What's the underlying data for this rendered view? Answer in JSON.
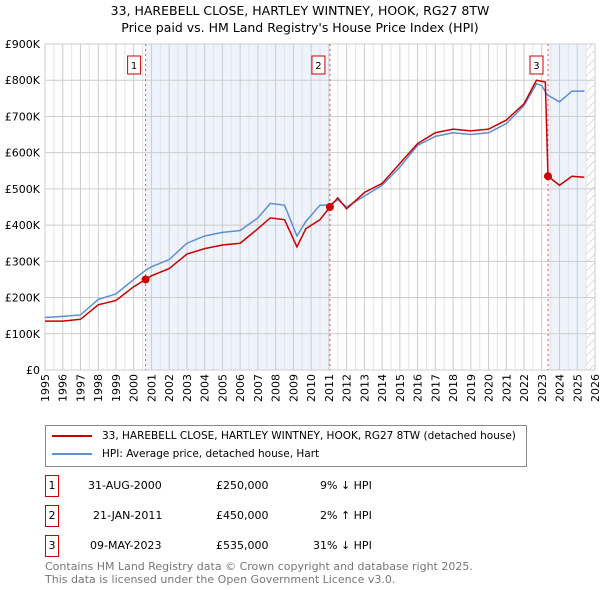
{
  "chart_data": {
    "type": "line",
    "title": "33, HAREBELL CLOSE, HARTLEY WINTNEY, HOOK, RG27 8TW",
    "subtitle": "Price paid vs. HM Land Registry's House Price Index (HPI)",
    "xlim": [
      1995,
      2026
    ],
    "ylim": [
      0,
      900000
    ],
    "x_ticks": [
      "1995",
      "1996",
      "1997",
      "1998",
      "1999",
      "2000",
      "2001",
      "2002",
      "2003",
      "2004",
      "2005",
      "2006",
      "2007",
      "2008",
      "2009",
      "2010",
      "2011",
      "2012",
      "2013",
      "2014",
      "2015",
      "2016",
      "2017",
      "2018",
      "2019",
      "2020",
      "2021",
      "2022",
      "2023",
      "2024",
      "2025",
      "2026"
    ],
    "y_ticks": [
      {
        "v": 0,
        "l": "£0"
      },
      {
        "v": 100000,
        "l": "£100K"
      },
      {
        "v": 200000,
        "l": "£200K"
      },
      {
        "v": 300000,
        "l": "£300K"
      },
      {
        "v": 400000,
        "l": "£400K"
      },
      {
        "v": 500000,
        "l": "£500K"
      },
      {
        "v": 600000,
        "l": "£600K"
      },
      {
        "v": 700000,
        "l": "£700K"
      },
      {
        "v": 800000,
        "l": "£800K"
      },
      {
        "v": 900000,
        "l": "£900K"
      }
    ],
    "grid": true,
    "colors": {
      "property": "#cc0000",
      "hpi": "#5b8fd4",
      "shade": "#eef3fc"
    },
    "series": [
      {
        "name": "33, HAREBELL CLOSE, HARTLEY WINTNEY, HOOK, RG27 8TW (detached house)",
        "x": [
          1995,
          1996,
          1997,
          1998,
          1999,
          2000,
          2000.67,
          2001,
          2002,
          2003,
          2004,
          2005,
          2006,
          2007,
          2007.7,
          2008.5,
          2009.2,
          2009.7,
          2010.5,
          2011.06,
          2011.5,
          2012,
          2013,
          2014,
          2015,
          2016,
          2017,
          2018,
          2019,
          2020,
          2021,
          2022,
          2022.7,
          2023.2,
          2023.35,
          2024,
          2024.7,
          2025.4
        ],
        "values": [
          135000,
          135000,
          140000,
          180000,
          192000,
          230000,
          250000,
          260000,
          280000,
          320000,
          335000,
          345000,
          350000,
          390000,
          420000,
          415000,
          340000,
          390000,
          415000,
          450000,
          475000,
          445000,
          490000,
          515000,
          570000,
          625000,
          655000,
          665000,
          660000,
          665000,
          690000,
          735000,
          800000,
          795000,
          535000,
          510000,
          535000,
          532000
        ]
      },
      {
        "name": "HPI: Average price, detached house, Hart",
        "x": [
          1995,
          1996,
          1997,
          1998,
          1999,
          2000,
          2000.67,
          2001,
          2002,
          2003,
          2004,
          2005,
          2006,
          2007,
          2007.7,
          2008.5,
          2009.2,
          2009.7,
          2010.5,
          2011,
          2011.5,
          2012,
          2013,
          2014,
          2015,
          2016,
          2017,
          2018,
          2019,
          2020,
          2021,
          2022,
          2022.7,
          2023,
          2023.3,
          2024,
          2024.7,
          2025.4
        ],
        "values": [
          145000,
          148000,
          152000,
          195000,
          210000,
          250000,
          275000,
          285000,
          305000,
          350000,
          370000,
          380000,
          385000,
          420000,
          460000,
          455000,
          370000,
          410000,
          455000,
          455000,
          470000,
          450000,
          480000,
          510000,
          560000,
          620000,
          645000,
          655000,
          650000,
          655000,
          680000,
          730000,
          790000,
          785000,
          760000,
          740000,
          770000,
          770000
        ]
      }
    ],
    "sales": [
      {
        "n": "1",
        "x": 2000.67,
        "value": 250000,
        "date": "31-AUG-2000",
        "price": "£250,000",
        "delta": "9% ↓ HPI"
      },
      {
        "n": "2",
        "x": 2011.06,
        "value": 450000,
        "date": "21-JAN-2011",
        "price": "£450,000",
        "delta": "2% ↑ HPI"
      },
      {
        "n": "3",
        "x": 2023.35,
        "value": 535000,
        "date": "09-MAY-2023",
        "price": "£535,000",
        "delta": "31% ↓ HPI"
      }
    ],
    "forecast_start": 2025.5
  },
  "footer": {
    "line1": "Contains HM Land Registry data © Crown copyright and database right 2025.",
    "line2": "This data is licensed under the Open Government Licence v3.0."
  }
}
